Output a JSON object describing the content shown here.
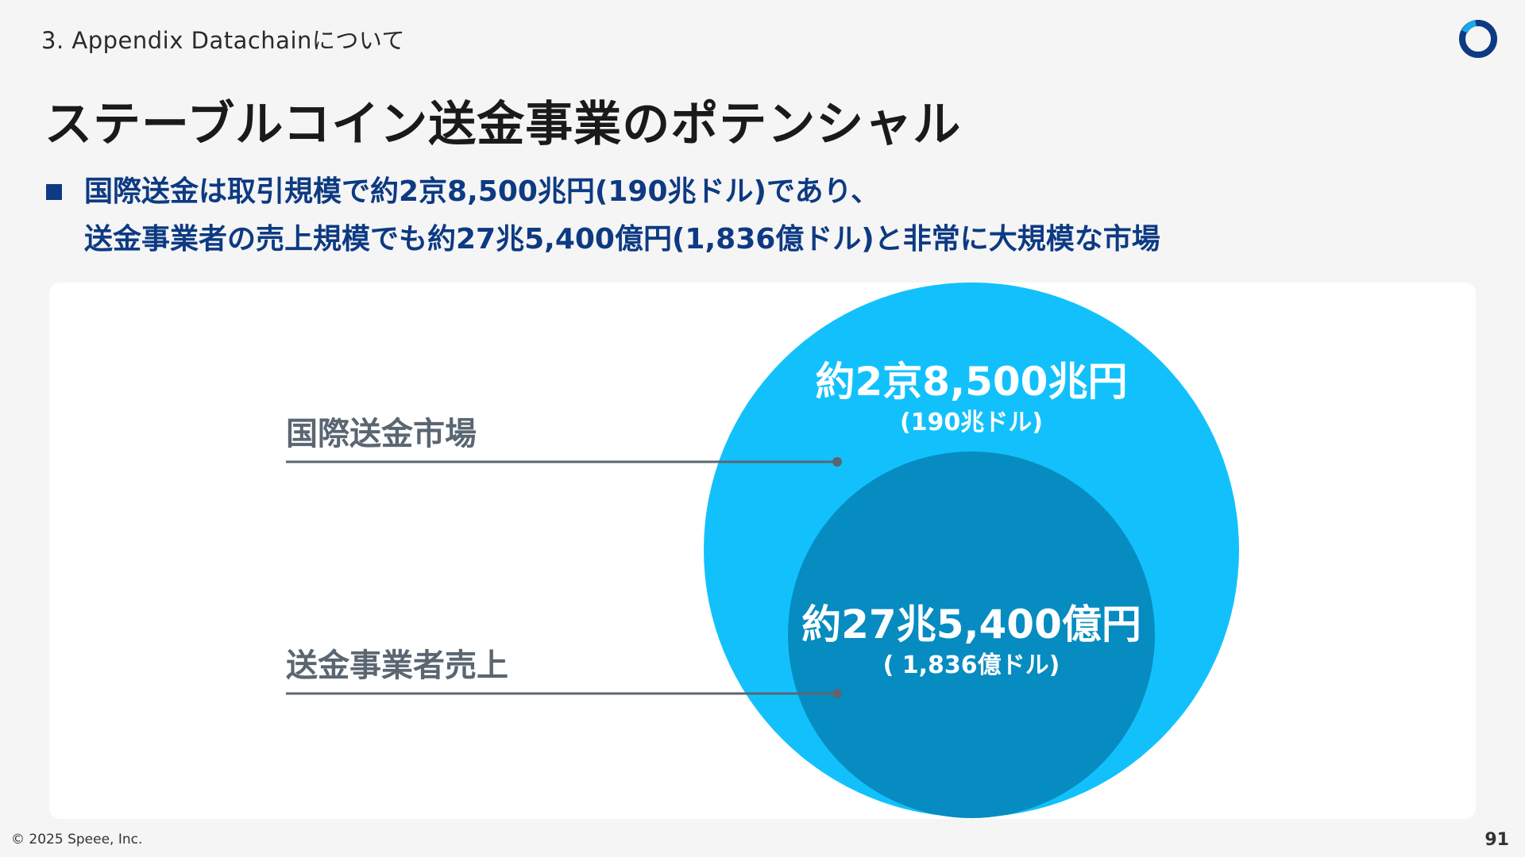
{
  "header": {
    "section": "3. Appendix Datachainについて",
    "title": "ステーブルコイン送金事業のポテンシャル"
  },
  "bullet": {
    "line1": "国際送金は取引規模で約2京8,500兆円(190兆ドル)であり、",
    "line2": "送金事業者の売上規模でも約27兆5,400億円(1,836億ドル)と非常に大規模な市場"
  },
  "diagram": {
    "outer": {
      "label": "国際送金市場",
      "value": "約2京8,500兆円",
      "sub": "(190兆ドル)",
      "color": "#12c1fc"
    },
    "inner": {
      "label": "送金事業者売上",
      "value": "約27兆5,400億円",
      "sub": "( 1,836億ドル)",
      "color": "#068cc0"
    },
    "leader_color": "#5a6672",
    "label_color": "#5a6672"
  },
  "footer": {
    "copyright": "© 2025 Speee, Inc.",
    "page": "91"
  }
}
